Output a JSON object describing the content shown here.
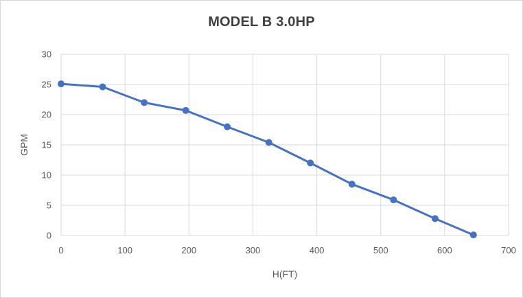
{
  "chart_data": {
    "type": "line",
    "title": "MODEL B 3.0HP",
    "xlabel": "H(FT)",
    "ylabel": "GPM",
    "x": [
      0,
      65,
      130,
      195,
      260,
      325,
      390,
      455,
      520,
      585,
      645
    ],
    "y": [
      25.1,
      24.6,
      22.0,
      20.7,
      18.0,
      15.4,
      12.0,
      8.5,
      5.9,
      2.8,
      0.1
    ],
    "xlim": [
      0,
      700
    ],
    "ylim": [
      0,
      30
    ],
    "x_ticks": [
      0,
      100,
      200,
      300,
      400,
      500,
      600,
      700
    ],
    "y_ticks": [
      0,
      5,
      10,
      15,
      20,
      25,
      30
    ],
    "grid": true,
    "legend_position": "none",
    "series_name": "MODEL B 3.0HP",
    "line_color": "#4472C4",
    "grid_color": "#D9D9D9",
    "tick_label_color": "#595959",
    "title_color": "#404040",
    "background_color": "#FFFFFF"
  }
}
